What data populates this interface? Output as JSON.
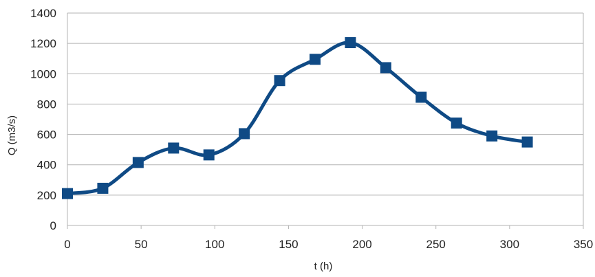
{
  "chart_data": {
    "type": "line",
    "title": "",
    "xlabel": "t (h)",
    "ylabel": "Q (m3/s)",
    "xlim": [
      0,
      350
    ],
    "ylim": [
      0,
      1400
    ],
    "xticks": [
      "0",
      "50",
      "100",
      "150",
      "200",
      "250",
      "300",
      "350"
    ],
    "yticks": [
      "0",
      "200",
      "400",
      "600",
      "800",
      "1000",
      "1200",
      "1400"
    ],
    "grid": "horizontal",
    "smooth": true,
    "marker": "square",
    "series": [
      {
        "color": "#0f4a85",
        "x": [
          0,
          24,
          48,
          72,
          96,
          120,
          144,
          168,
          192,
          216,
          240,
          264,
          288,
          312
        ],
        "y": [
          210,
          245,
          415,
          510,
          465,
          605,
          955,
          1095,
          1205,
          1040,
          845,
          675,
          590,
          550
        ]
      }
    ]
  }
}
